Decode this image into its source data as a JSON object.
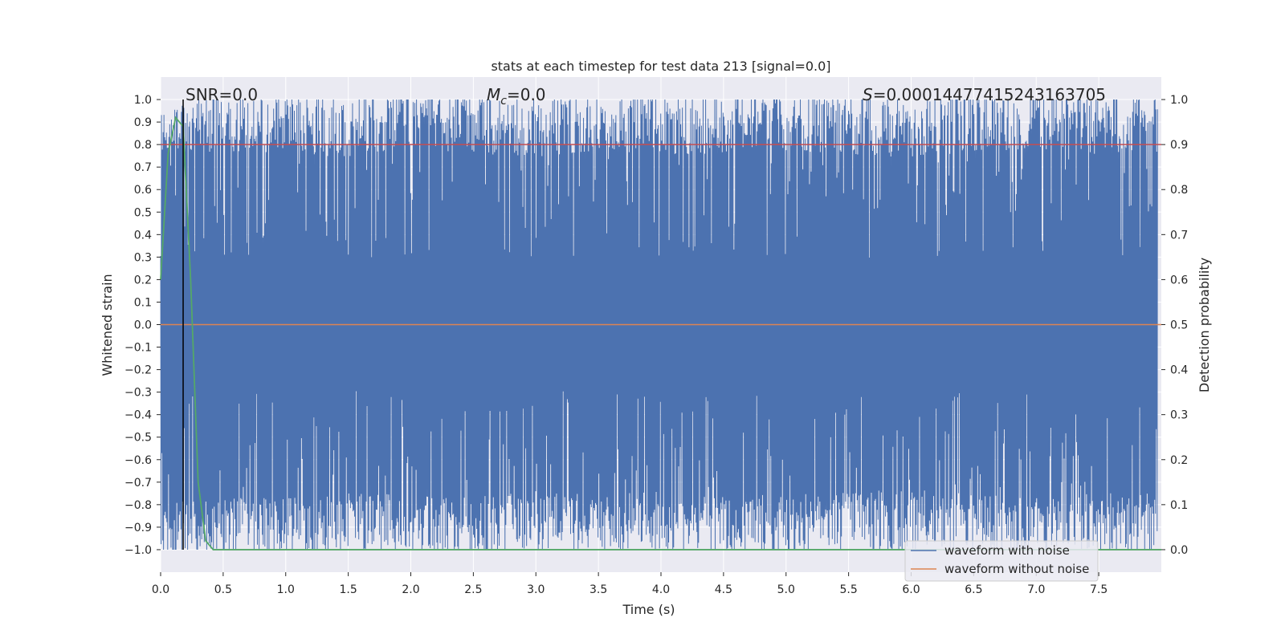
{
  "chart_data": {
    "type": "line",
    "title": "stats at each timestep for test data 213 [signal=0.0]",
    "xlabel": "Time (s)",
    "ylabel": "Whitened strain",
    "y2label": "Detection probability",
    "xlim": [
      0.0,
      8.0
    ],
    "ylim": [
      -1.1,
      1.1
    ],
    "y2lim": [
      -0.05,
      1.05
    ],
    "x_ticks": [
      "0.0",
      "0.5",
      "1.0",
      "1.5",
      "2.0",
      "2.5",
      "3.0",
      "3.5",
      "4.0",
      "4.5",
      "5.0",
      "5.5",
      "6.0",
      "6.5",
      "7.0",
      "7.5"
    ],
    "y_ticks": [
      "1.0",
      "0.9",
      "0.8",
      "0.7",
      "0.6",
      "0.5",
      "0.4",
      "0.3",
      "0.2",
      "0.1",
      "0.0",
      "−0.1",
      "−0.2",
      "−0.3",
      "−0.4",
      "−0.5",
      "−0.6",
      "−0.7",
      "−0.8",
      "−0.9",
      "−1.0"
    ],
    "y2_ticks": [
      "1.0",
      "0.9",
      "0.8",
      "0.7",
      "0.6",
      "0.5",
      "0.4",
      "0.3",
      "0.2",
      "0.1",
      "0.0"
    ],
    "grid": true,
    "legend_position": "bottom-right",
    "annotations": {
      "snr": "SNR=0.0",
      "mc_symbol": "M",
      "mc_sub": "c",
      "mc_value": "=0.0",
      "s_symbol": "S",
      "s_value": "=0.00014477415243163705"
    },
    "marker_line_x": 0.18,
    "series": [
      {
        "name": "waveform with noise",
        "color": "#4c72b0",
        "kind": "noise",
        "envelope_top_x": [
          0.0,
          0.5,
          1.0,
          1.5,
          2.0,
          2.5,
          3.0,
          3.5,
          4.0,
          4.5,
          5.0,
          5.5,
          6.0,
          6.5,
          7.0,
          7.5,
          8.0
        ],
        "envelope_top": [
          0.85,
          0.87,
          0.86,
          0.84,
          0.88,
          0.86,
          0.83,
          0.87,
          0.85,
          0.86,
          0.87,
          0.85,
          0.84,
          0.86,
          0.88,
          0.85,
          0.86
        ],
        "envelope_bottom": [
          -0.88,
          -0.86,
          -0.87,
          -0.84,
          -0.85,
          -0.86,
          -0.83,
          -0.85,
          -0.84,
          -0.86,
          -0.85,
          -0.84,
          -0.83,
          -0.85,
          -0.86,
          -0.84,
          -0.85
        ]
      },
      {
        "name": "waveform without noise",
        "color": "#dd8452",
        "x": [
          0.0,
          8.0
        ],
        "y": [
          0.0,
          0.0
        ]
      },
      {
        "name": "",
        "color": "#55a868",
        "axis": "right",
        "x": [
          0.0,
          0.06,
          0.12,
          0.18,
          0.24,
          0.3,
          0.36,
          0.42,
          8.0
        ],
        "y": [
          0.6,
          0.88,
          0.96,
          0.94,
          0.6,
          0.15,
          0.02,
          0.0,
          0.0
        ]
      },
      {
        "name": "",
        "color": "#c44e52",
        "axis": "right",
        "x": [
          0.0,
          8.0
        ],
        "y": [
          0.9,
          0.9
        ]
      }
    ]
  }
}
